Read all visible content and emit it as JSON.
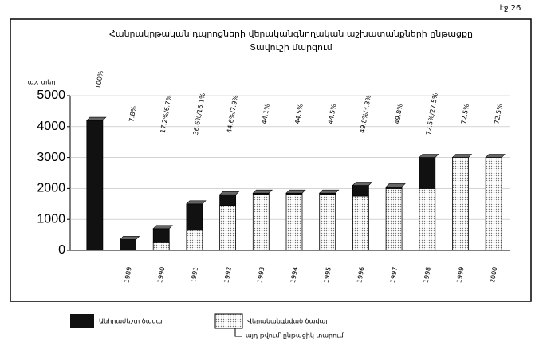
{
  "page_label": "էջ 26",
  "chart_data": {
    "type": "stacked-bar",
    "title": "Հանրակրթական դպրոցների վերականգնողական աշխատանքների ընթացքը",
    "subtitle": "Տավուշի մարզում",
    "y_unit": "աշ. տեղ",
    "categories": [
      null,
      "1989",
      "1990",
      "1991",
      "1992",
      "1993",
      "1994",
      "1995",
      "1996",
      "1997",
      "1998",
      "1999",
      "2000"
    ],
    "series": [
      {
        "name": "Վերականգնված ծավալ",
        "color": "#ffffff",
        "pattern": "dots",
        "values": [
          0,
          0,
          250,
          650,
          1450,
          1800,
          1800,
          1800,
          1750,
          2000,
          2000,
          3000,
          3000
        ]
      },
      {
        "name": "Անհրաժեշտ ծավալ",
        "color": "#111111",
        "values": [
          4200,
          350,
          450,
          850,
          350,
          50,
          50,
          50,
          350,
          50,
          1000,
          0,
          0
        ]
      }
    ],
    "annotations": [
      "100%",
      "7.8%",
      "17.2%/6.7%",
      "36.6%/16.1%",
      "44.6%/7.9%",
      "44.1%",
      "44.5%",
      "44.5%",
      "49.8%/3.3%",
      "49.8%",
      "72.5%/27.5%",
      "72.5%",
      "72.5%"
    ],
    "legend_note": "այդ թվում՝ ընթացիկ տարում",
    "ylim": [
      0,
      5000
    ],
    "yticks": [
      0,
      1000,
      2000,
      3000,
      4000,
      5000
    ],
    "grid": true
  }
}
